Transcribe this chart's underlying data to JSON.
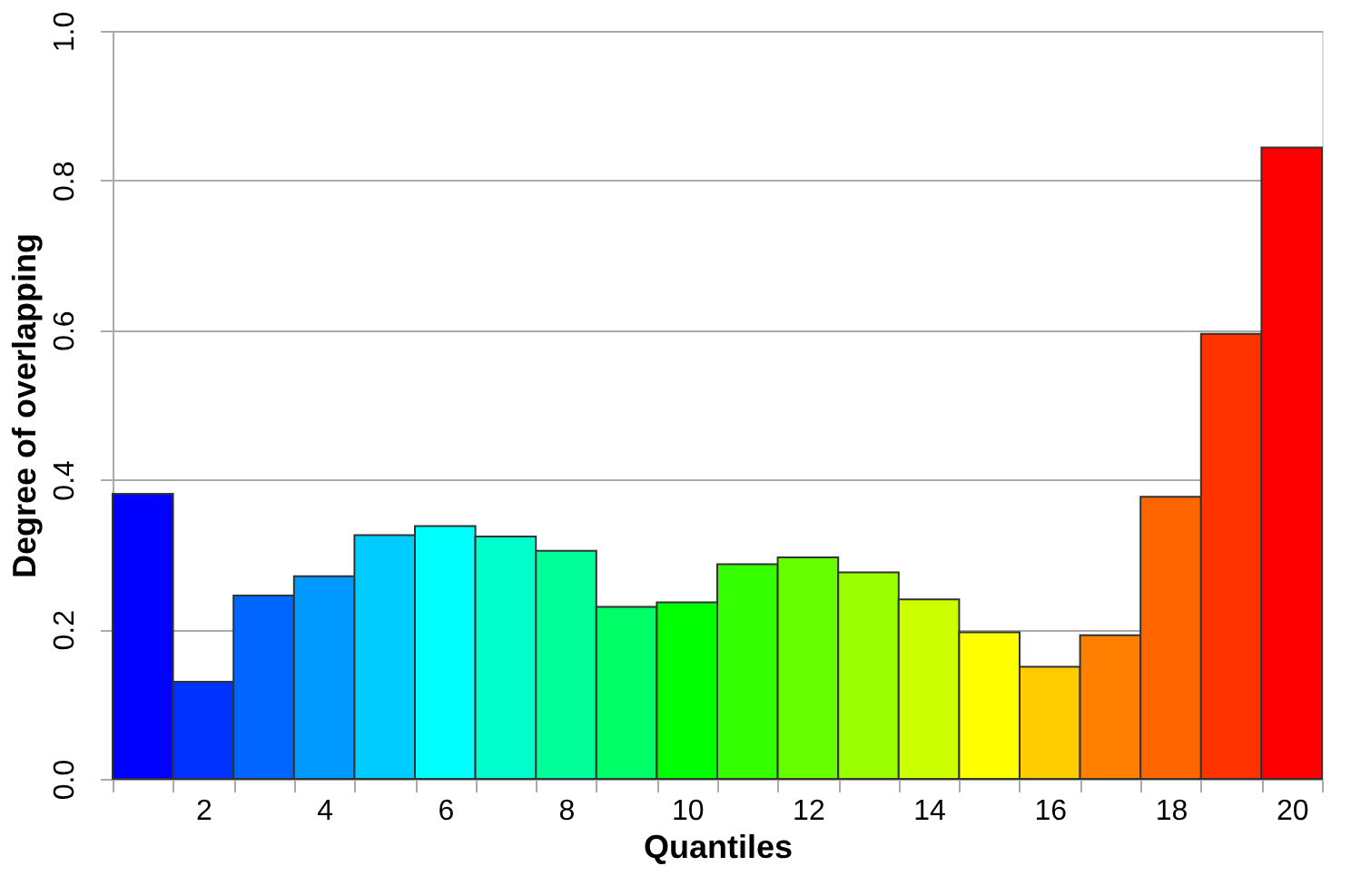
{
  "chart_data": {
    "type": "bar",
    "xlabel": "Quantiles",
    "ylabel": "Degree of overlapping",
    "categories": [
      null,
      "2",
      null,
      "4",
      null,
      "6",
      null,
      "8",
      null,
      "10",
      null,
      "12",
      null,
      "14",
      null,
      "16",
      null,
      "18",
      null,
      "20"
    ],
    "values": [
      0.381,
      0.13,
      0.245,
      0.271,
      0.326,
      0.338,
      0.324,
      0.305,
      0.23,
      0.236,
      0.287,
      0.296,
      0.276,
      0.24,
      0.196,
      0.15,
      0.192,
      0.377,
      0.595,
      0.844
    ],
    "colors": [
      "#0000ff",
      "#0033ff",
      "#0066ff",
      "#0099ff",
      "#00ccff",
      "#00ffff",
      "#00ffcc",
      "#00ff99",
      "#00ff66",
      "#00ff00",
      "#33ff00",
      "#66ff00",
      "#99ff00",
      "#ccff00",
      "#ffff00",
      "#ffcc00",
      "#ff8000",
      "#ff6600",
      "#ff3300",
      "#ff0000"
    ],
    "ylim": [
      0,
      1.0
    ],
    "yticks": [
      {
        "value": 0,
        "label": "0.0"
      },
      0.2,
      0.4,
      0.6,
      0.8,
      {
        "value": 1.0,
        "label": "1.0"
      }
    ],
    "grid": "y",
    "legend": false
  }
}
